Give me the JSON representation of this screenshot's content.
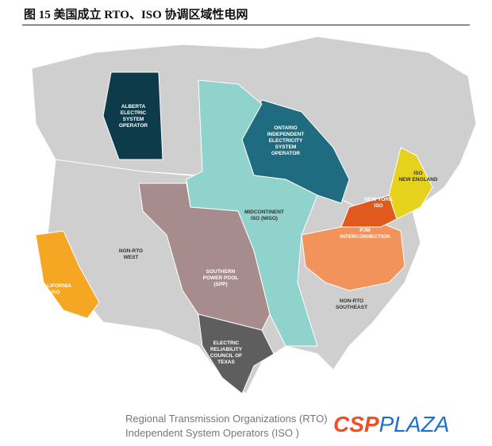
{
  "title": "图 15 美国成立 RTO、ISO 协调区域性电网",
  "colors": {
    "land": "#cfcfcf",
    "alberta": "#0d3b4a",
    "ontario": "#1f6c80",
    "miso": "#8fd3cc",
    "new_england": "#e6d21c",
    "new_york": "#df5a1c",
    "pjm": "#f2935c",
    "california": "#f5a623",
    "spp": "#a68c8c",
    "ercot": "#5e5e5e"
  },
  "regions": {
    "alberta": [
      "ALBERTA",
      "ELECTRIC",
      "SYSTEM",
      "OPERATOR"
    ],
    "ontario": [
      "ONTARIO",
      "INDEPENDENT",
      "ELECTRICITY",
      "SYSTEM",
      "OPERATOR"
    ],
    "new_england": [
      "ISO",
      "NEW ENGLAND"
    ],
    "new_york": [
      "NEW YORK",
      "ISO"
    ],
    "miso": [
      "MIDCONTINENT",
      "ISO (MISO)"
    ],
    "pjm": [
      "PJM",
      "INTERCONNECTION"
    ],
    "non_rto_west": [
      "NON-RTO",
      "WEST"
    ],
    "california": [
      "CALIFORNIA",
      "ISO"
    ],
    "spp": [
      "SOUTHERN",
      "POWER POOL",
      "(SPP)"
    ],
    "non_rto_southeast": [
      "NON-RTO",
      "SOUTHEAST"
    ],
    "ercot": [
      "ELECTRIC",
      "RELIABILITY",
      "COUNCIL OF",
      "TEXAS"
    ]
  },
  "legend": [
    "Regional Transmission Organizations (RTO)",
    "Independent System Operators (ISO )"
  ],
  "logo": {
    "part1": "CSP",
    "part2": "PLAZA"
  }
}
